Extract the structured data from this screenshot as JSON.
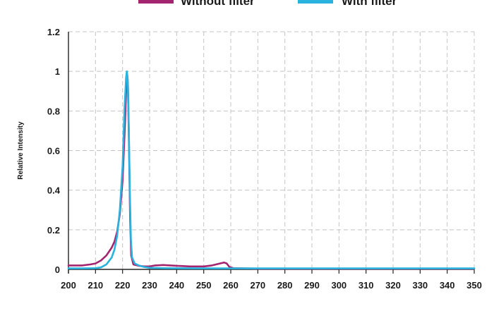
{
  "chart_data": {
    "type": "line",
    "title": "",
    "xlabel": "",
    "ylabel": "Relative Intensity",
    "xlim": [
      200,
      350
    ],
    "ylim": [
      0,
      1.2
    ],
    "x_ticks": [
      200,
      210,
      220,
      230,
      240,
      250,
      260,
      270,
      280,
      290,
      300,
      310,
      320,
      330,
      340,
      350
    ],
    "y_ticks": [
      {
        "value": 0,
        "label": "0"
      },
      {
        "value": 0.2,
        "label": "0.2"
      },
      {
        "value": 0.4,
        "label": "0.4"
      },
      {
        "value": 0.6,
        "label": "0.6"
      },
      {
        "value": 0.8,
        "label": "0.8"
      },
      {
        "value": 1,
        "label": "1"
      },
      {
        "value": 1.2,
        "label": "1.2"
      }
    ],
    "grid": true,
    "legend_position": "top",
    "series": [
      {
        "name": "Without filter",
        "color": "#a3246f",
        "points": [
          [
            200,
            0.02
          ],
          [
            205,
            0.02
          ],
          [
            208,
            0.025
          ],
          [
            210,
            0.03
          ],
          [
            212,
            0.045
          ],
          [
            214,
            0.07
          ],
          [
            216,
            0.11
          ],
          [
            217,
            0.14
          ],
          [
            218,
            0.19
          ],
          [
            219,
            0.28
          ],
          [
            220,
            0.45
          ],
          [
            220.8,
            0.7
          ],
          [
            221.3,
            0.9
          ],
          [
            221.7,
            0.98
          ],
          [
            222,
            0.93
          ],
          [
            222.4,
            0.6
          ],
          [
            222.8,
            0.25
          ],
          [
            223.2,
            0.07
          ],
          [
            224,
            0.025
          ],
          [
            226,
            0.018
          ],
          [
            228,
            0.015
          ],
          [
            230,
            0.015
          ],
          [
            232,
            0.02
          ],
          [
            235,
            0.022
          ],
          [
            240,
            0.018
          ],
          [
            245,
            0.015
          ],
          [
            250,
            0.015
          ],
          [
            253,
            0.02
          ],
          [
            256,
            0.03
          ],
          [
            257.5,
            0.035
          ],
          [
            258.5,
            0.03
          ],
          [
            259.5,
            0.012
          ],
          [
            261,
            0.006
          ],
          [
            265,
            0.005
          ],
          [
            270,
            0.004
          ],
          [
            300,
            0.004
          ],
          [
            350,
            0.004
          ]
        ]
      },
      {
        "name": "With filter",
        "color": "#29b3de",
        "points": [
          [
            200,
            0.005
          ],
          [
            205,
            0.005
          ],
          [
            210,
            0.006
          ],
          [
            212,
            0.01
          ],
          [
            214,
            0.025
          ],
          [
            216,
            0.06
          ],
          [
            217,
            0.1
          ],
          [
            218,
            0.17
          ],
          [
            219,
            0.3
          ],
          [
            220,
            0.52
          ],
          [
            220.7,
            0.8
          ],
          [
            221.3,
            0.97
          ],
          [
            221.6,
            1.0
          ],
          [
            221.9,
            0.96
          ],
          [
            222.3,
            0.72
          ],
          [
            222.7,
            0.38
          ],
          [
            223.1,
            0.15
          ],
          [
            223.5,
            0.06
          ],
          [
            224.5,
            0.03
          ],
          [
            226,
            0.02
          ],
          [
            228,
            0.012
          ],
          [
            230,
            0.008
          ],
          [
            235,
            0.006
          ],
          [
            250,
            0.005
          ],
          [
            300,
            0.005
          ],
          [
            350,
            0.005
          ]
        ]
      }
    ]
  }
}
